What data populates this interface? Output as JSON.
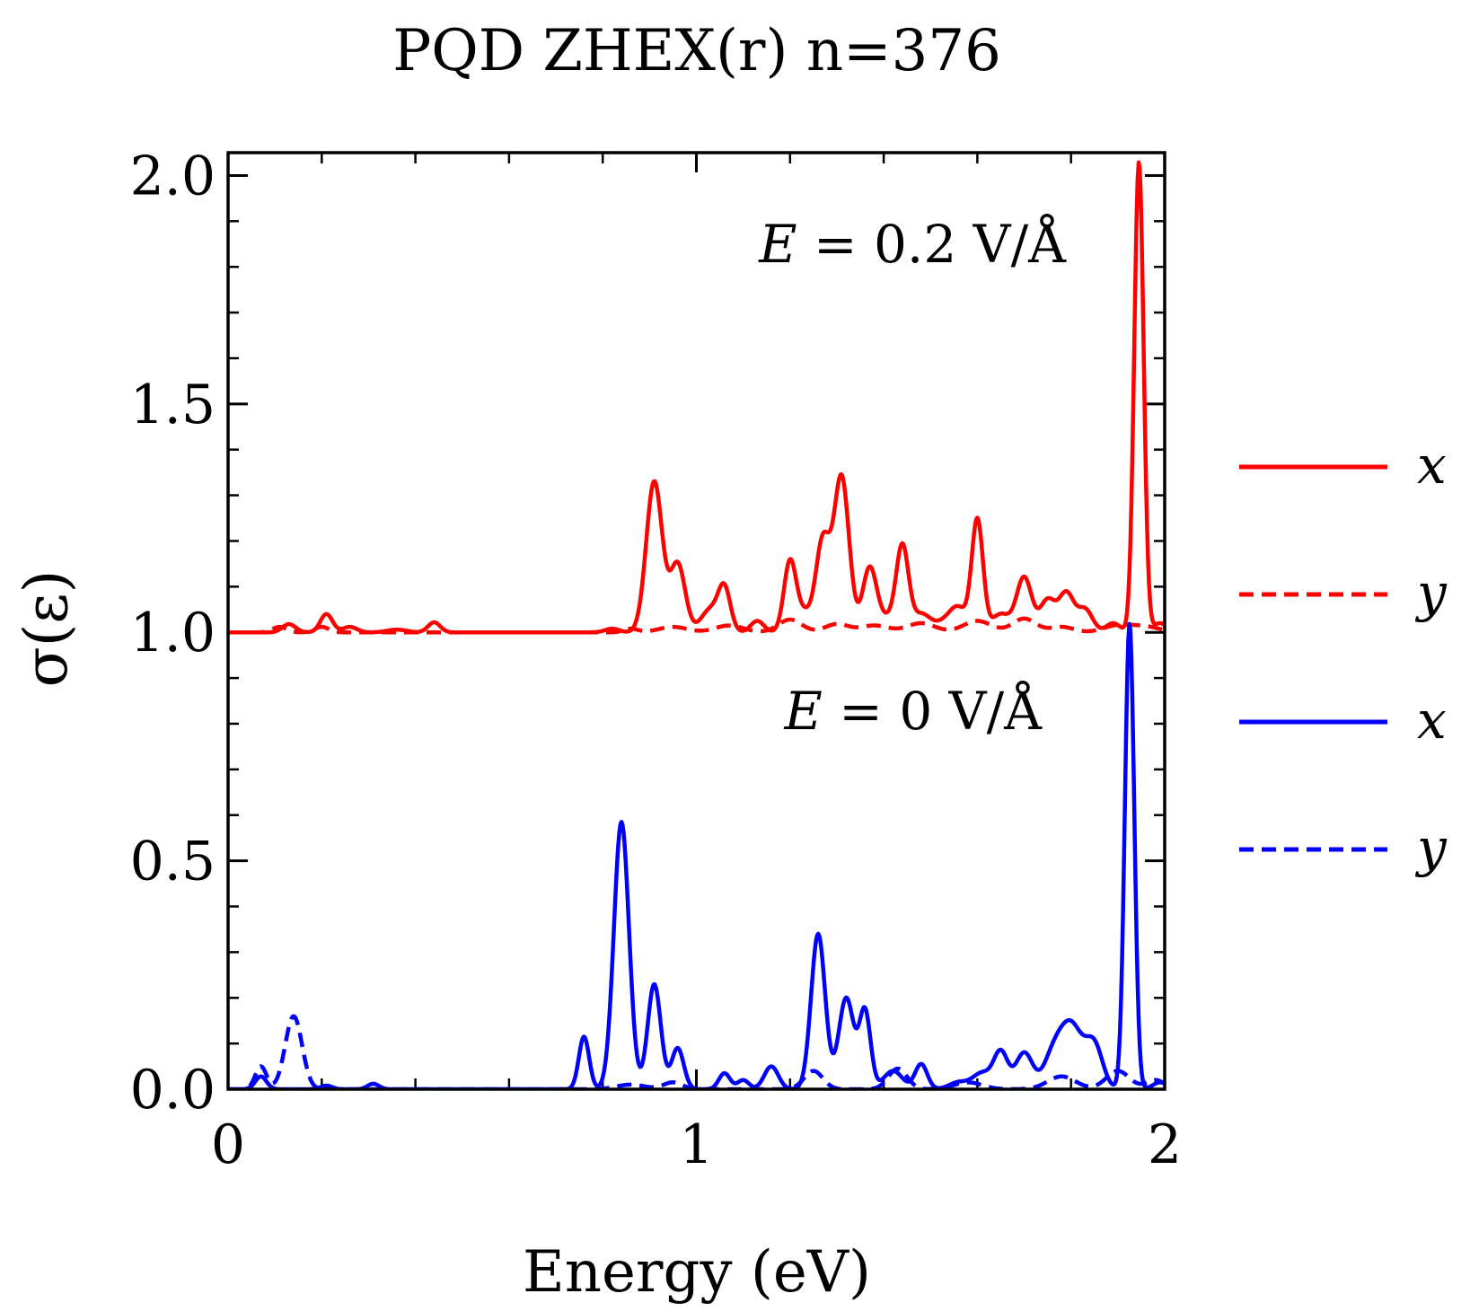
{
  "chart_data": {
    "type": "line",
    "title": "PQD ZHEX(r) n=376",
    "xlabel": "Energy (eV)",
    "ylabel": "σ(ε)",
    "xlim": [
      0,
      2
    ],
    "ylim": [
      0,
      2.05
    ],
    "xticks": [
      0,
      1,
      2
    ],
    "xtick_labels": [
      "0",
      "1",
      "2"
    ],
    "yticks": [
      0.0,
      0.5,
      1.0,
      1.5,
      2.0
    ],
    "ytick_labels": [
      "0.0",
      "0.5",
      "1.0",
      "1.5",
      "2.0"
    ],
    "grid": false,
    "legend_position": "right (outside)",
    "annotations": [
      {
        "id": "field-high",
        "var": "E",
        "rest": " = 0.2 V/Å"
      },
      {
        "id": "field-zero",
        "var": "E",
        "rest": " = 0 V/Å"
      }
    ],
    "legend": [
      {
        "label": "x",
        "color": "#ff0000",
        "dash": "solid"
      },
      {
        "label": "y",
        "color": "#ff0000",
        "dash": "dashed"
      },
      {
        "label": "x",
        "color": "#0000ff",
        "dash": "solid"
      },
      {
        "label": "y",
        "color": "#0000ff",
        "dash": "dashed"
      }
    ],
    "series": [
      {
        "name": "x (E = 0.2 V/Å)",
        "color": "#ff0000",
        "dash": "solid",
        "baseline": 1.0,
        "peaks": [
          [
            0.13,
            0.018,
            0.014
          ],
          [
            0.21,
            0.04,
            0.013
          ],
          [
            0.26,
            0.012,
            0.015
          ],
          [
            0.36,
            0.006,
            0.02
          ],
          [
            0.44,
            0.022,
            0.013
          ],
          [
            0.82,
            0.008,
            0.015
          ],
          [
            0.91,
            0.33,
            0.017
          ],
          [
            0.96,
            0.15,
            0.016
          ],
          [
            1.03,
            0.05,
            0.02
          ],
          [
            1.06,
            0.09,
            0.013
          ],
          [
            1.13,
            0.025,
            0.014
          ],
          [
            1.2,
            0.155,
            0.013
          ],
          [
            1.23,
            0.04,
            0.015
          ],
          [
            1.27,
            0.2,
            0.015
          ],
          [
            1.31,
            0.34,
            0.016
          ],
          [
            1.37,
            0.14,
            0.015
          ],
          [
            1.41,
            0.03,
            0.02
          ],
          [
            1.44,
            0.18,
            0.013
          ],
          [
            1.48,
            0.04,
            0.02
          ],
          [
            1.53,
            0.02,
            0.02
          ],
          [
            1.56,
            0.05,
            0.018
          ],
          [
            1.6,
            0.245,
            0.012
          ],
          [
            1.65,
            0.04,
            0.02
          ],
          [
            1.7,
            0.12,
            0.016
          ],
          [
            1.75,
            0.07,
            0.016
          ],
          [
            1.79,
            0.085,
            0.016
          ],
          [
            1.83,
            0.05,
            0.016
          ],
          [
            1.89,
            0.02,
            0.015
          ],
          [
            1.945,
            1.03,
            0.01
          ],
          [
            1.99,
            0.02,
            0.015
          ]
        ]
      },
      {
        "name": "y (E = 0.2 V/Å)",
        "color": "#ff0000",
        "dash": "dashed",
        "baseline": 1.0,
        "peaks": [
          [
            0.11,
            0.012,
            0.015
          ],
          [
            0.2,
            0.012,
            0.015
          ],
          [
            0.86,
            0.008,
            0.015
          ],
          [
            0.95,
            0.012,
            0.03
          ],
          [
            1.07,
            0.015,
            0.03
          ],
          [
            1.2,
            0.028,
            0.025
          ],
          [
            1.3,
            0.018,
            0.025
          ],
          [
            1.38,
            0.015,
            0.03
          ],
          [
            1.48,
            0.02,
            0.03
          ],
          [
            1.6,
            0.025,
            0.03
          ],
          [
            1.7,
            0.03,
            0.025
          ],
          [
            1.78,
            0.012,
            0.025
          ],
          [
            1.9,
            0.015,
            0.03
          ],
          [
            1.96,
            0.012,
            0.03
          ]
        ]
      },
      {
        "name": "x (E = 0 V/Å)",
        "color": "#0000ff",
        "dash": "solid",
        "baseline": 0.0,
        "peaks": [
          [
            0.07,
            0.028,
            0.012
          ],
          [
            0.21,
            0.008,
            0.012
          ],
          [
            0.31,
            0.012,
            0.012
          ],
          [
            0.76,
            0.115,
            0.011
          ],
          [
            0.84,
            0.585,
            0.016
          ],
          [
            0.91,
            0.23,
            0.014
          ],
          [
            0.96,
            0.09,
            0.013
          ],
          [
            1.06,
            0.035,
            0.012
          ],
          [
            1.1,
            0.02,
            0.012
          ],
          [
            1.16,
            0.05,
            0.015
          ],
          [
            1.26,
            0.34,
            0.015
          ],
          [
            1.32,
            0.2,
            0.016
          ],
          [
            1.36,
            0.17,
            0.012
          ],
          [
            1.42,
            0.04,
            0.02
          ],
          [
            1.48,
            0.055,
            0.013
          ],
          [
            1.56,
            0.015,
            0.02
          ],
          [
            1.61,
            0.035,
            0.02
          ],
          [
            1.65,
            0.08,
            0.015
          ],
          [
            1.7,
            0.08,
            0.018
          ],
          [
            1.76,
            0.06,
            0.02
          ],
          [
            1.8,
            0.14,
            0.025
          ],
          [
            1.85,
            0.09,
            0.018
          ],
          [
            1.925,
            1.02,
            0.01
          ],
          [
            1.99,
            0.015,
            0.015
          ]
        ]
      },
      {
        "name": "y (E = 0 V/Å)",
        "color": "#0000ff",
        "dash": "dashed",
        "baseline": 0.0,
        "peaks": [
          [
            0.07,
            0.05,
            0.012
          ],
          [
            0.14,
            0.16,
            0.018
          ],
          [
            0.86,
            0.01,
            0.03
          ],
          [
            0.95,
            0.015,
            0.02
          ],
          [
            1.25,
            0.04,
            0.02
          ],
          [
            1.43,
            0.045,
            0.02
          ],
          [
            1.58,
            0.015,
            0.03
          ],
          [
            1.78,
            0.028,
            0.03
          ],
          [
            1.9,
            0.04,
            0.025
          ],
          [
            1.98,
            0.02,
            0.02
          ]
        ]
      }
    ]
  }
}
